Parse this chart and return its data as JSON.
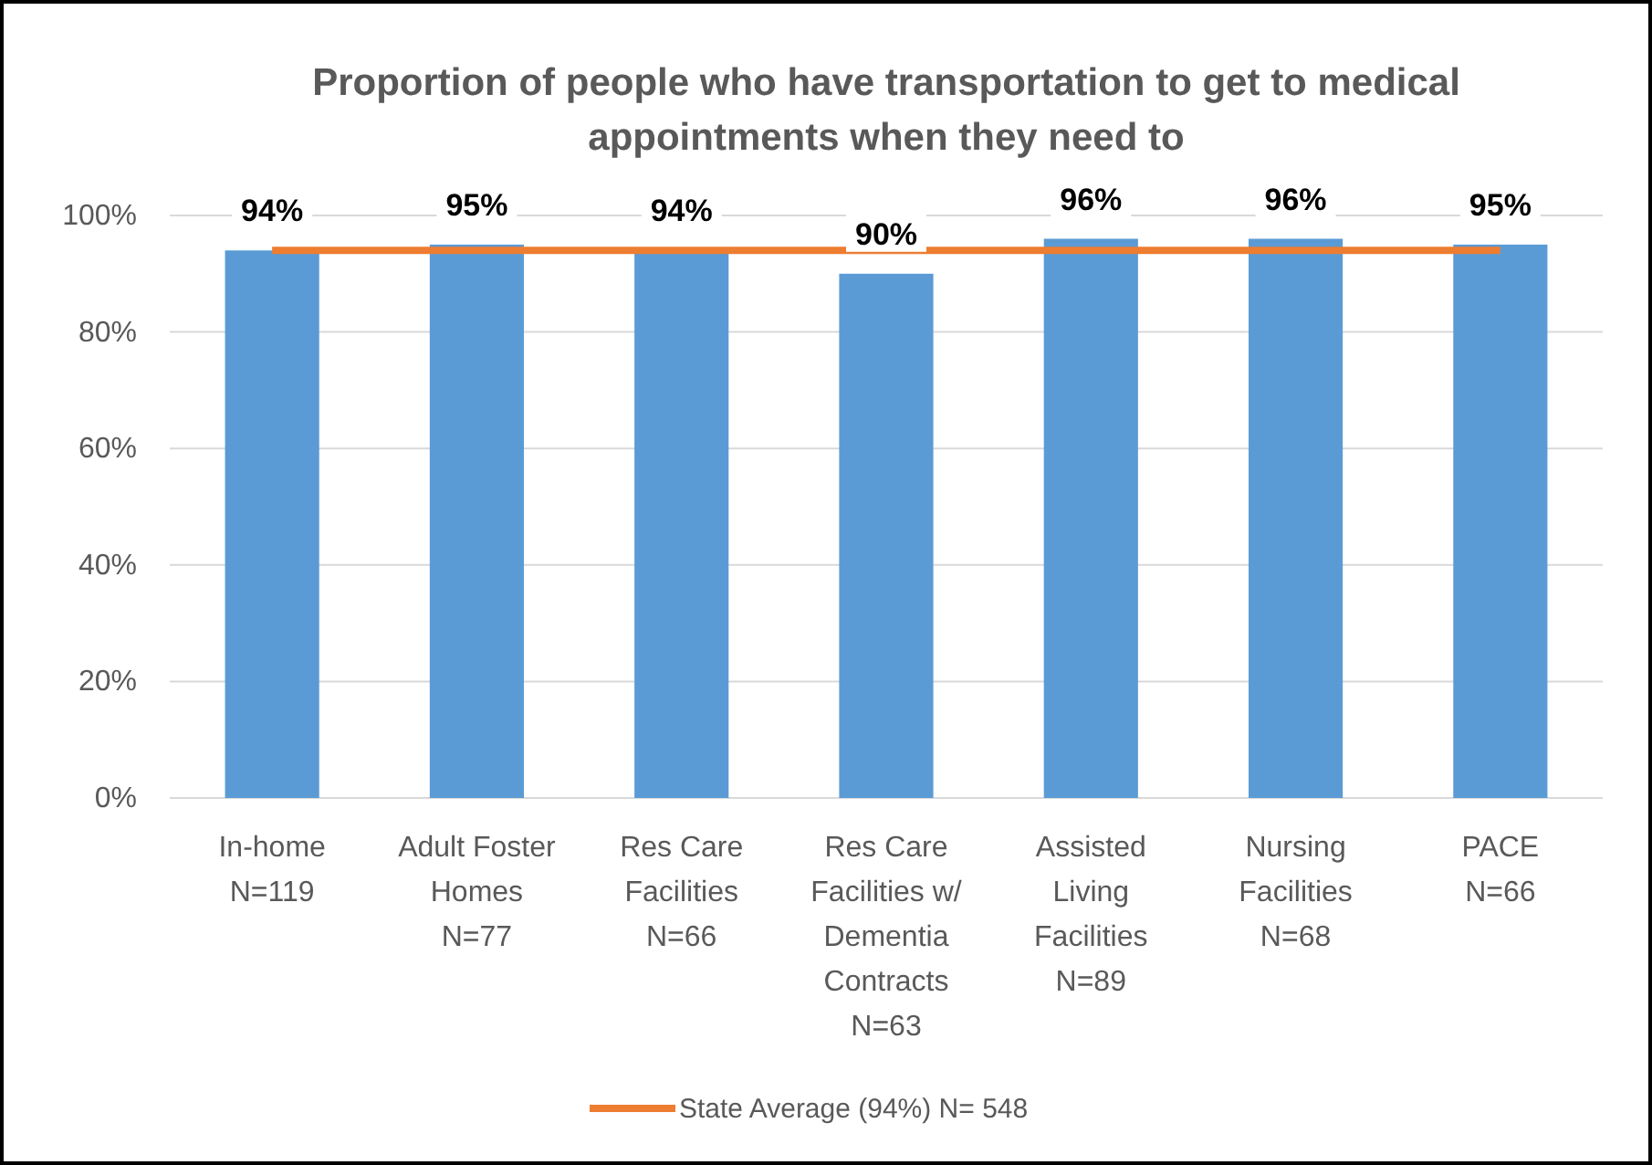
{
  "chart_data": {
    "type": "bar",
    "title": "Proportion of people who have transportation to get to medical appointments when they need to",
    "categories": [
      "In-home\nN=119",
      "Adult Foster\nHomes\nN=77",
      "Res Care\nFacilities\nN=66",
      "Res Care\nFacilities w/\nDementia\nContracts\nN=63",
      "Assisted\nLiving\nFacilities\nN=89",
      "Nursing\nFacilities\nN=68",
      "PACE\nN=66"
    ],
    "series": [
      {
        "color": "#5b9bd5",
        "values": [
          94,
          95,
          94,
          90,
          96,
          96,
          95
        ],
        "value_labels": [
          "94%",
          "95%",
          "94%",
          "90%",
          "96%",
          "96%",
          "95%"
        ]
      },
      {
        "type": "line",
        "name": "State Average (94%) N= 548",
        "color": "#ed7d31",
        "values": [
          94,
          94,
          94,
          94,
          94,
          94,
          94
        ]
      }
    ],
    "ylim": [
      0,
      100
    ],
    "yticks": [
      {
        "value": 0,
        "label": "0%"
      },
      {
        "value": 20,
        "label": "20%"
      },
      {
        "value": 40,
        "label": "40%"
      },
      {
        "value": 60,
        "label": "60%"
      },
      {
        "value": 80,
        "label": "80%"
      },
      {
        "value": 100,
        "label": "100%"
      }
    ],
    "grid": "y",
    "legend": "bottom",
    "marker": "none",
    "line_style": "solid"
  }
}
